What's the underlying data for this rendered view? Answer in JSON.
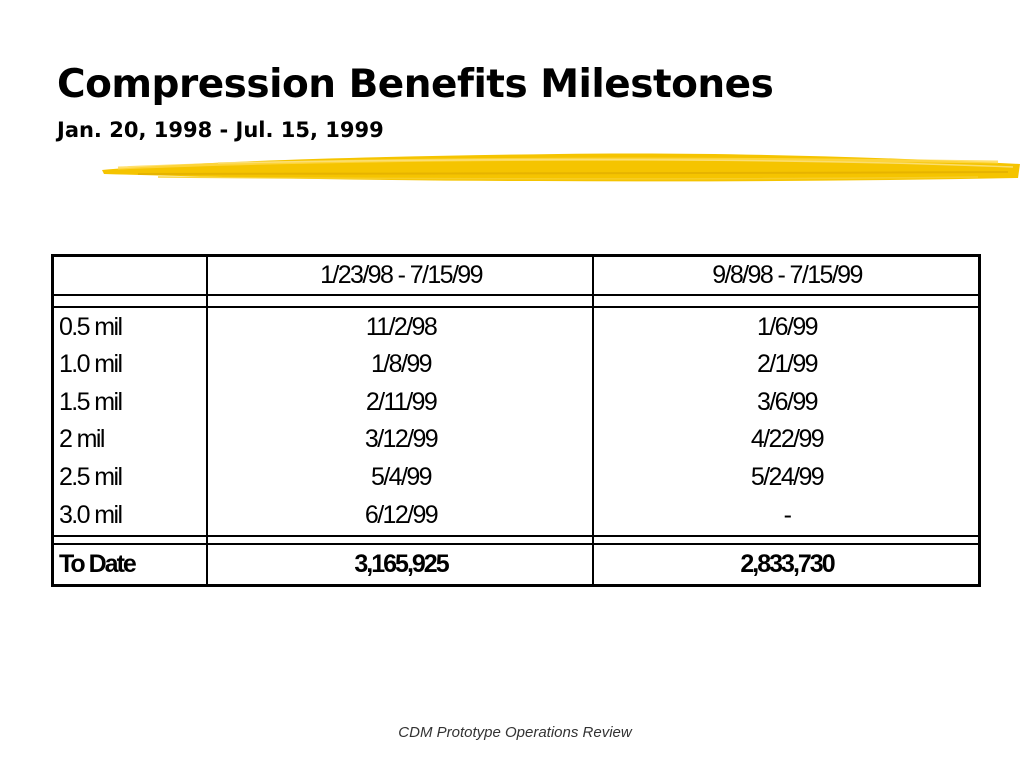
{
  "slide": {
    "title": "Compression Benefits Milestones",
    "subtitle": "Jan. 20, 1998 - Jul. 15, 1999",
    "accent_color": "#f5c400",
    "footer": "CDM Prototype Operations Review"
  },
  "table": {
    "headers": [
      "",
      "1/23/98 - 7/15/99",
      "9/8/98 - 7/15/99"
    ],
    "rows": [
      [
        "0.5 mil",
        "11/2/98",
        "1/6/99"
      ],
      [
        "1.0 mil",
        "1/8/99",
        "2/1/99"
      ],
      [
        "1.5 mil",
        "2/11/99",
        "3/6/99"
      ],
      [
        "2 mil",
        "3/12/99",
        "4/22/99"
      ],
      [
        "2.5 mil",
        "5/4/99",
        "5/24/99"
      ],
      [
        "3.0 mil",
        "6/12/99",
        "-"
      ]
    ],
    "total": [
      "To Date",
      "3,165,925",
      "2,833,730"
    ]
  }
}
